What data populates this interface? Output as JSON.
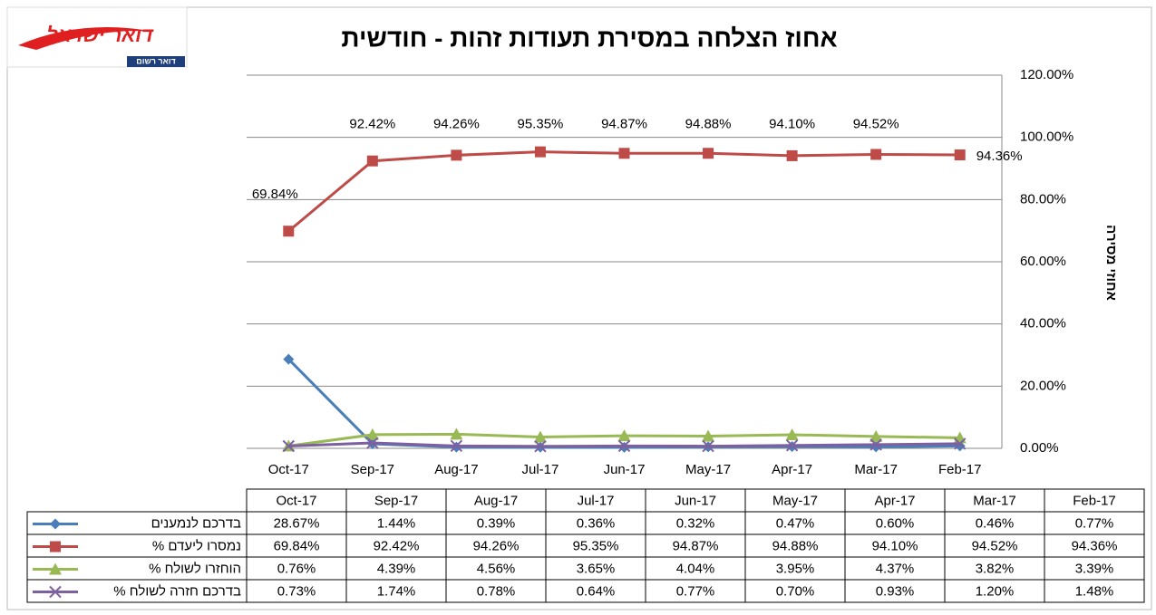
{
  "logo": {
    "name": "דואר ישראל",
    "tag": "דואר רשום"
  },
  "chart_data": {
    "type": "line",
    "title": "אחוז הצלחה במסירת תעודות זהות - חודשית",
    "ylabel": "אחוזי מסירה",
    "categories": [
      "Oct-17",
      "Sep-17",
      "Aug-17",
      "Jul-17",
      "Jun-17",
      "May-17",
      "Apr-17",
      "Mar-17",
      "Feb-17"
    ],
    "ylim": [
      0,
      120
    ],
    "yticks": [
      {
        "value": 0,
        "label": "0.00%"
      },
      {
        "value": 20,
        "label": "20.00%"
      },
      {
        "value": 40,
        "label": "40.00%"
      },
      {
        "value": 60,
        "label": "60.00%"
      },
      {
        "value": 80,
        "label": "80.00%"
      },
      {
        "value": 100,
        "label": "100.00%"
      },
      {
        "value": 120,
        "label": "120.00%"
      }
    ],
    "grid": true,
    "series": [
      {
        "name": "בדרכם לנמענים",
        "color": "#4a7ebb",
        "marker": "diamond",
        "values": [
          28.67,
          1.44,
          0.39,
          0.36,
          0.32,
          0.47,
          0.6,
          0.46,
          0.77
        ],
        "value_labels": [
          "28.67%",
          "1.44%",
          "0.39%",
          "0.36%",
          "0.32%",
          "0.47%",
          "0.60%",
          "0.46%",
          "0.77%"
        ]
      },
      {
        "name": "נמסרו ליעדם  %",
        "color": "#be4b48",
        "marker": "square",
        "values": [
          69.84,
          92.42,
          94.26,
          95.35,
          94.87,
          94.88,
          94.1,
          94.52,
          94.36
        ],
        "value_labels": [
          "69.84%",
          "92.42%",
          "94.26%",
          "95.35%",
          "94.87%",
          "94.88%",
          "94.10%",
          "94.52%",
          "94.36%"
        ]
      },
      {
        "name": "הוחזרו לשולח %",
        "color": "#98b954",
        "marker": "triangle",
        "values": [
          0.76,
          4.39,
          4.56,
          3.65,
          4.04,
          3.95,
          4.37,
          3.82,
          3.39
        ],
        "value_labels": [
          "0.76%",
          "4.39%",
          "4.56%",
          "3.65%",
          "4.04%",
          "3.95%",
          "4.37%",
          "3.82%",
          "3.39%"
        ]
      },
      {
        "name": "בדרכם חזרה לשולח %",
        "color": "#7d60a0",
        "marker": "x",
        "values": [
          0.73,
          1.74,
          0.78,
          0.64,
          0.77,
          0.7,
          0.93,
          1.2,
          1.48
        ],
        "value_labels": [
          "0.73%",
          "1.74%",
          "0.78%",
          "0.64%",
          "0.77%",
          "0.70%",
          "0.93%",
          "1.20%",
          "1.48%"
        ]
      }
    ],
    "data_labels_series": 1
  }
}
